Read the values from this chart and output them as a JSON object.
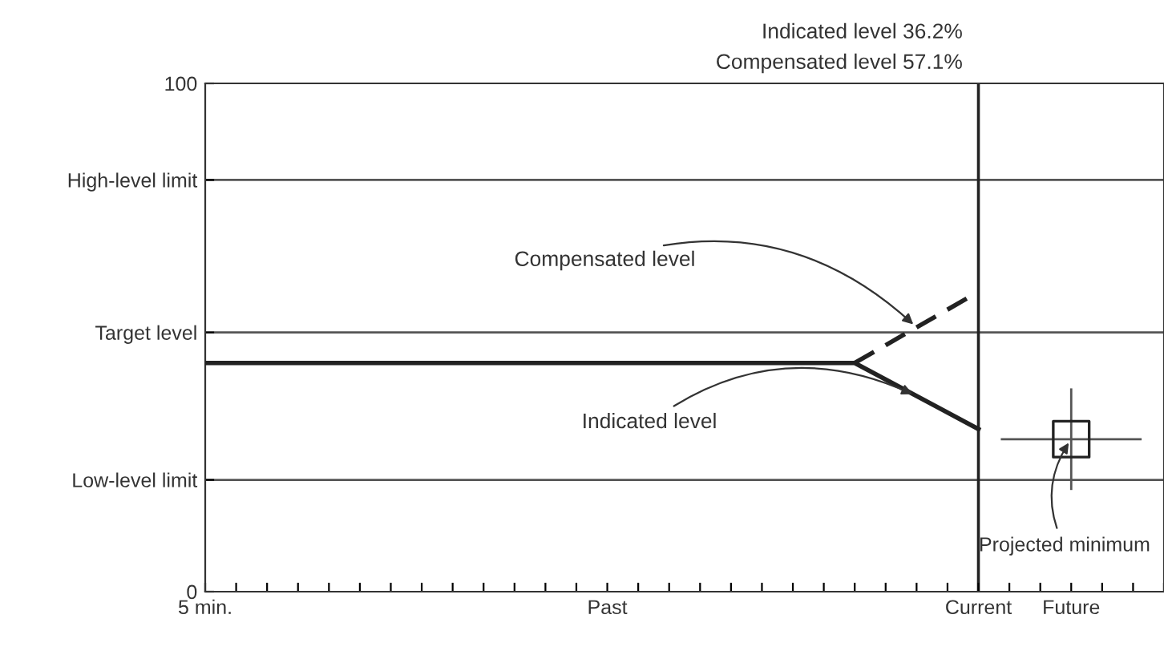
{
  "chart_data": {
    "type": "line",
    "annotations": [
      "Indicated level 36.2%",
      "Compensated level 57.1%"
    ],
    "categories": [
      "5 min.",
      null,
      null,
      null,
      null,
      null,
      null,
      null,
      null,
      null,
      null,
      null,
      null,
      "Past",
      null,
      null,
      null,
      null,
      null,
      null,
      null,
      null,
      null,
      null,
      null,
      "Current",
      null,
      null,
      "Future",
      null,
      null,
      null
    ],
    "ylim": [
      0,
      100
    ],
    "yticks": [
      0,
      {
        "value": 22,
        "label": "Low-level limit"
      },
      {
        "value": 51,
        "label": "Target level"
      },
      {
        "value": 81,
        "label": "High-level limit"
      },
      100
    ],
    "series": [
      {
        "name": "Indicated level",
        "color": "#222222",
        "values": [
          45,
          null,
          null,
          null,
          null,
          null,
          null,
          null,
          null,
          null,
          null,
          null,
          null,
          null,
          null,
          null,
          null,
          null,
          null,
          null,
          null,
          45,
          null,
          null,
          null,
          32,
          null,
          null,
          null,
          null,
          null,
          null
        ],
        "line_style": "solid"
      },
      {
        "name": "Compensated level",
        "color": "#222222",
        "values": [
          null,
          null,
          null,
          null,
          null,
          null,
          null,
          null,
          null,
          null,
          null,
          null,
          null,
          null,
          null,
          null,
          null,
          null,
          null,
          null,
          null,
          45,
          null,
          null,
          null,
          59,
          null,
          null,
          null,
          null,
          null,
          null
        ],
        "line_style": "dashed"
      },
      {
        "name": "Projected minimum",
        "type": "scatter",
        "color": "#222222",
        "values": [
          null,
          null,
          null,
          null,
          null,
          null,
          null,
          null,
          null,
          null,
          null,
          null,
          null,
          null,
          null,
          null,
          null,
          null,
          null,
          null,
          null,
          null,
          null,
          null,
          null,
          null,
          null,
          null,
          30,
          null,
          null,
          null
        ],
        "errors": [
          null,
          null,
          null,
          null,
          null,
          null,
          null,
          null,
          null,
          null,
          null,
          null,
          null,
          null,
          null,
          null,
          null,
          null,
          null,
          null,
          null,
          null,
          null,
          null,
          null,
          null,
          null,
          null,
          10,
          null,
          null,
          null
        ],
        "marker": "square"
      }
    ],
    "ref_lines": [
      {
        "axis": "y",
        "value": 22,
        "color": "#555555"
      },
      {
        "axis": "y",
        "value": 51,
        "color": "#555555"
      },
      {
        "axis": "y",
        "value": 81,
        "color": "#555555"
      },
      {
        "axis": "x",
        "value": "Current",
        "color": "#222222"
      }
    ],
    "grid": false,
    "legend": false
  }
}
